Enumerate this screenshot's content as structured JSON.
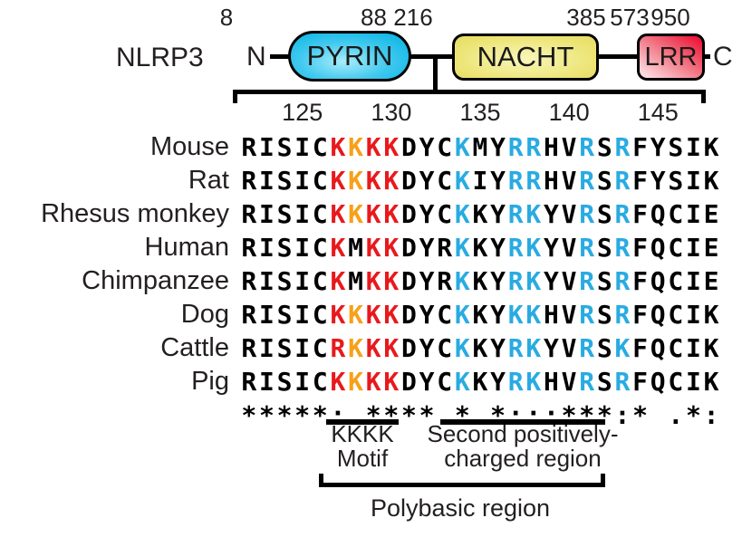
{
  "protein": {
    "label": "NLRP3",
    "n_terminus": "N",
    "c_terminus": "C",
    "domains": [
      {
        "name": "PYRIN",
        "start": "8",
        "end": "88",
        "color": "#2bc1e8"
      },
      {
        "name": "NACHT",
        "start": "216",
        "end": "385",
        "color": "#e9e26d"
      },
      {
        "name": "LRR",
        "start": "573",
        "end": "950",
        "color": "#ee4d68"
      }
    ]
  },
  "ruler": {
    "ticks": [
      {
        "label": "125",
        "column": 4
      },
      {
        "label": "130",
        "column": 9
      },
      {
        "label": "135",
        "column": 14
      },
      {
        "label": "140",
        "column": 19
      },
      {
        "label": "145",
        "column": 24
      }
    ]
  },
  "alignment": {
    "species": [
      "Mouse",
      "Rat",
      "Rhesus monkey",
      "Human",
      "Chimpanzee",
      "Dog",
      "Cattle",
      "Pig"
    ],
    "sequences": [
      "RISICKKKKDYCKMYRRHVRSRFYSIK",
      "RISICKKKKDYCKIYRRHVRSRFYSIK",
      "RISICKKKKDYCKKYRKYVRSRFQCIE",
      "RISICKMKKDYRKKYRKYVRSRFQCIE",
      "RISICKMKKDYRKKYRKYVRSRFQCIE",
      "RISICKKKKDYCKKYKKHVRSRFQCIK",
      "RISICRKKKDYCKKYRKYVRSKFQCIK",
      "RISICKKKKDYCKKYRKHVRSRFQCIK"
    ],
    "color_codes": [
      "kkkkkrorrkkkckkcckkckckkkkk",
      "kkkkkrorrkkkckkcckkckckkkkk",
      "kkkkkrorrkkkckkcckkckckkkkk",
      "kkkkkrkrrkkkckkcckkckckkkkk",
      "kkkkkrkrrkkkckkcckkckckkkkk",
      "kkkkkrorrkkkckkcckkckckkkkk",
      "kkkkkrorrkkkckkcckkckckkkkk",
      "kkkkkrorrkkkckkcckkckckkkkk"
    ],
    "color_map": {
      "k": "#000000",
      "r": "#e8191c",
      "o": "#f7a019",
      "c": "#29abe2"
    },
    "conservation": "*****: **** * *:::***:* .*:"
  },
  "annotations": {
    "kkkk_line1": "KKKK",
    "kkkk_line2": "Motif",
    "second_line1": "Second positively-",
    "second_line2": "charged region",
    "polybasic": "Polybasic region"
  }
}
